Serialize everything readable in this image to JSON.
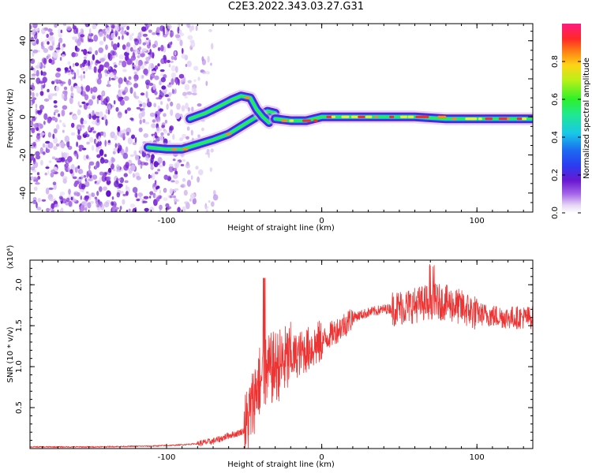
{
  "title": "C2E3.2022.343.03.27.G31",
  "colors": {
    "snr_line": "#ee3333",
    "colormap": [
      "#ffffff",
      "#d9c3f0",
      "#a566e8",
      "#7a1fd6",
      "#4a2ce0",
      "#1c5cf2",
      "#16c9e6",
      "#2bef52",
      "#d8f017",
      "#ff8a14",
      "#ff2828",
      "#ff1a7a"
    ]
  },
  "chart_data": [
    {
      "type": "heatmap",
      "xlabel": "Height of straight line (km)",
      "ylabel": "Frequency (Hz)",
      "xlim": [
        -188,
        136
      ],
      "ylim": [
        -50,
        49
      ],
      "xticks": [
        -100,
        0,
        100
      ],
      "yticks": [
        -40,
        -20,
        0,
        20,
        40
      ],
      "colorbar": {
        "label": "Normalized spectral amplitude",
        "range": [
          0.0,
          1.0
        ],
        "ticks": [
          "0.0",
          "0.2",
          "0.4",
          "0.6",
          "0.8"
        ]
      },
      "features": {
        "noise_region_x": [
          -188,
          -78
        ],
        "lower_branch": {
          "x": [
            -112,
            -100,
            -90,
            -82,
            -70,
            -60,
            -50,
            -42,
            -35,
            -30
          ],
          "y": [
            -16,
            -17,
            -17,
            -15,
            -12,
            -9,
            -4,
            0,
            3,
            2
          ]
        },
        "upper_branch": {
          "x": [
            -85,
            -75,
            -65,
            -58,
            -52,
            -46,
            -42,
            -38,
            -34
          ],
          "y": [
            -1,
            2,
            6,
            9,
            11,
            10,
            4,
            0,
            -3
          ]
        },
        "main_line": {
          "x": [
            -30,
            -20,
            -10,
            0,
            20,
            40,
            60,
            80,
            100,
            120,
            136
          ],
          "y": [
            -1,
            -2,
            -2,
            0,
            0,
            0,
            0,
            -1,
            -1,
            -1,
            -1
          ]
        }
      }
    },
    {
      "type": "line",
      "xlabel": "Height of straight line (km)",
      "ylabel": "SNR (10 * v/v)",
      "y_multiplier": "(x10⁴)",
      "xlim": [
        -188,
        136
      ],
      "ylim": [
        0,
        2.3
      ],
      "xticks": [
        -100,
        0,
        100
      ],
      "yticks": [
        0.5,
        1.0,
        1.5,
        2.0
      ],
      "series": [
        {
          "x": [
            -188,
            -150,
            -110,
            -95,
            -80,
            -70,
            -65,
            -60,
            -55,
            -50,
            -45,
            -42,
            -38,
            -34,
            -30,
            -25,
            -20,
            -15,
            -10,
            -5,
            0,
            5,
            10,
            15,
            20,
            25,
            30,
            40,
            50,
            60,
            70,
            80,
            90,
            100,
            110,
            120,
            136
          ],
          "y": [
            0.02,
            0.02,
            0.03,
            0.04,
            0.06,
            0.09,
            0.12,
            0.16,
            0.18,
            0.22,
            0.5,
            0.75,
            0.9,
            0.95,
            1.0,
            1.05,
            1.1,
            1.15,
            1.2,
            1.25,
            1.3,
            1.38,
            1.45,
            1.52,
            1.6,
            1.63,
            1.66,
            1.7,
            1.72,
            1.75,
            1.8,
            1.78,
            1.72,
            1.65,
            1.62,
            1.6,
            1.6
          ]
        }
      ]
    }
  ]
}
